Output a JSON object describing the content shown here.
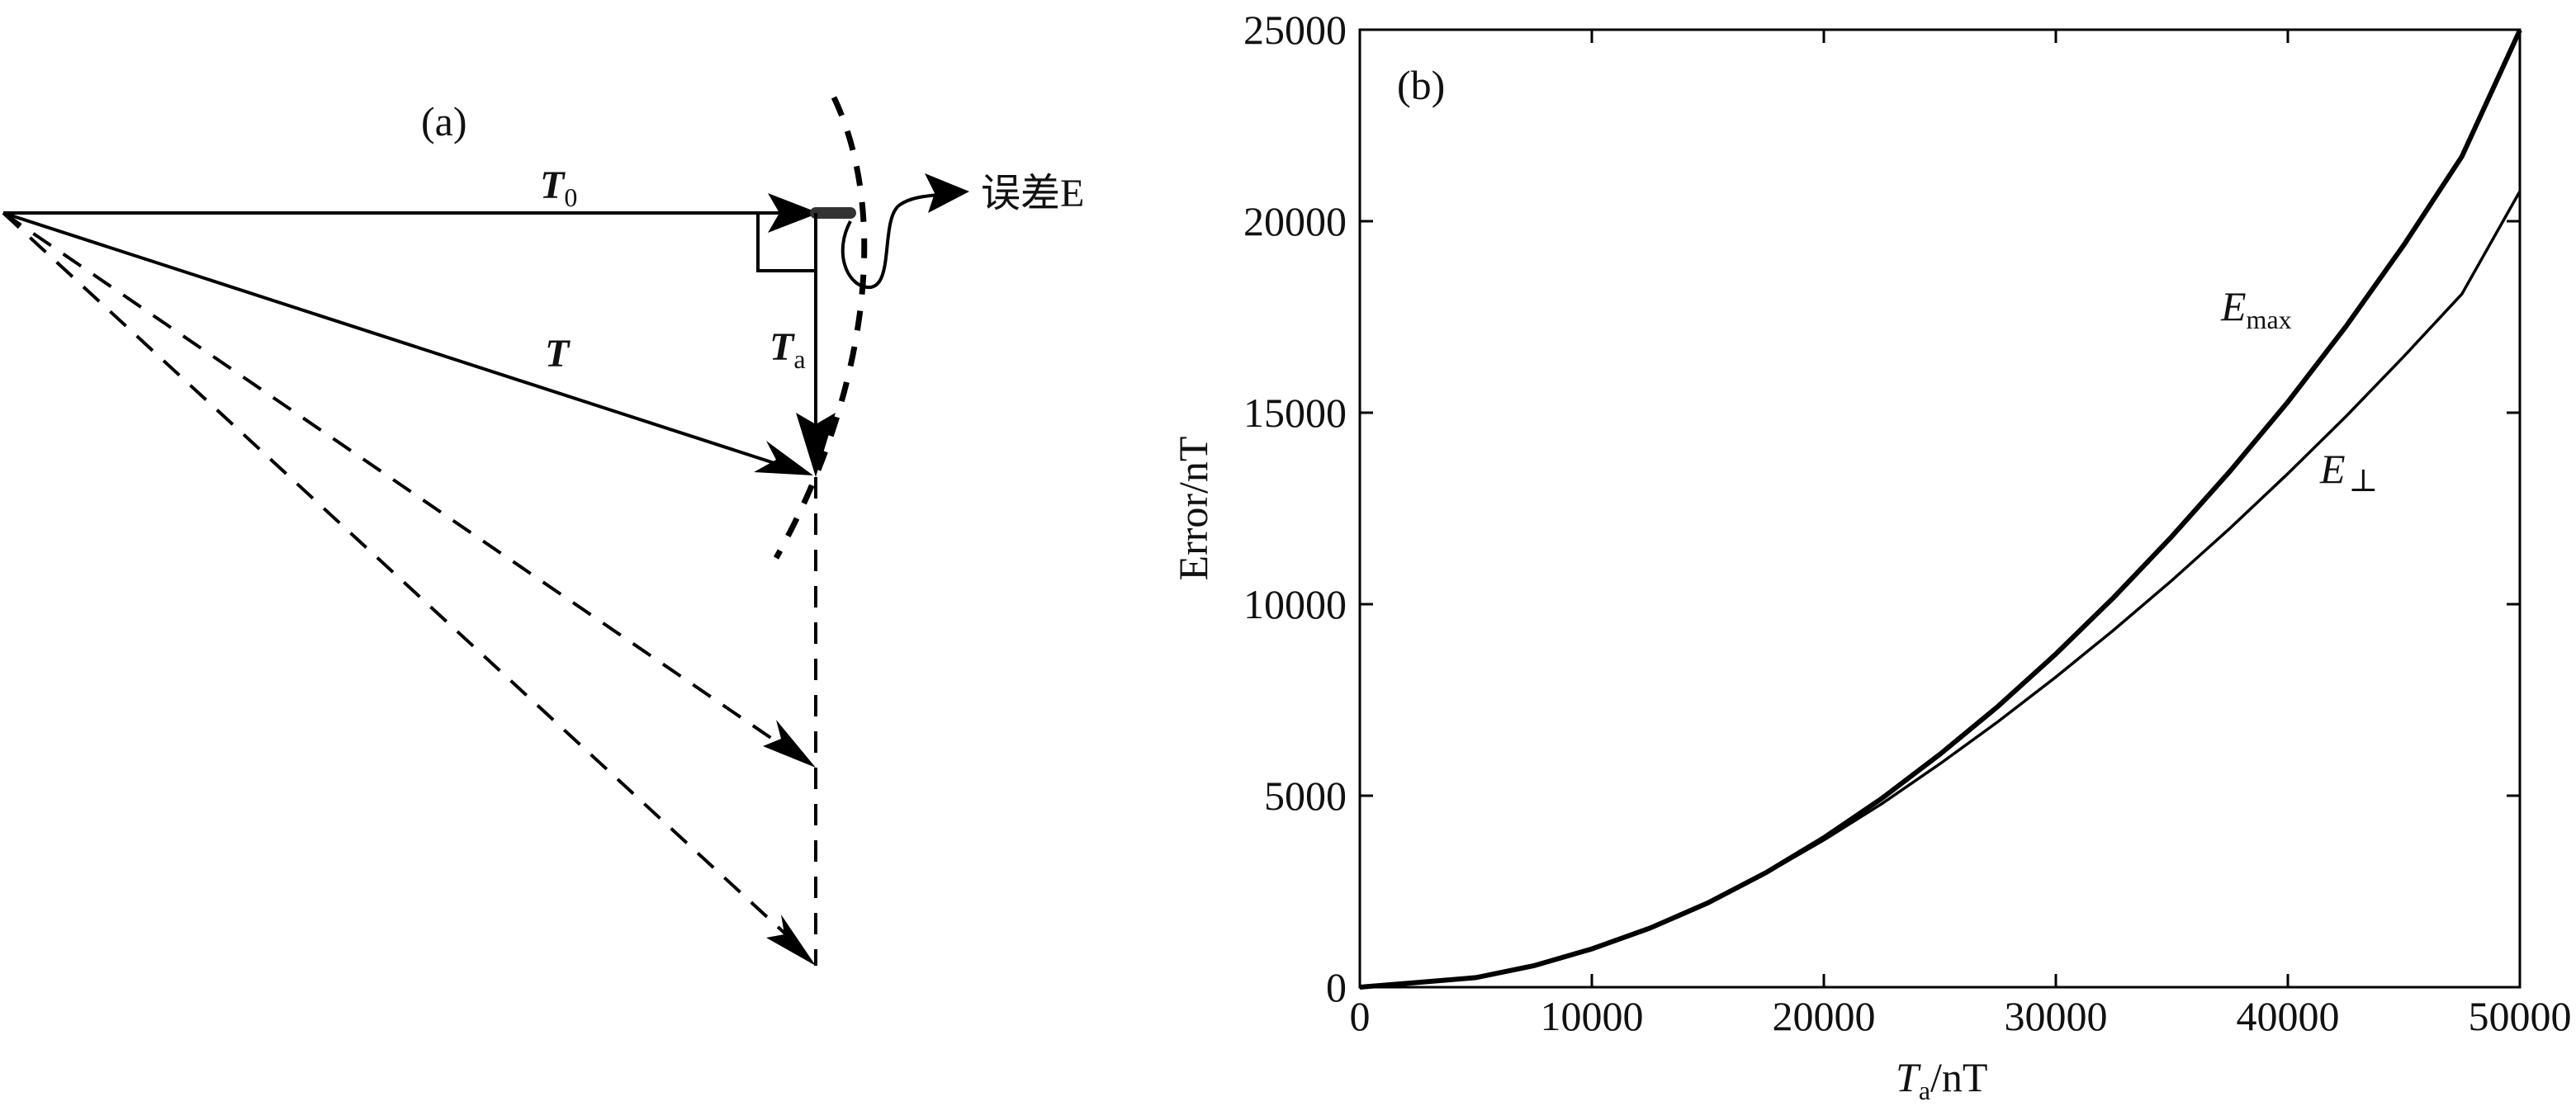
{
  "panel_a": {
    "label": "(a)",
    "vectors": {
      "T0": {
        "symbol": "T",
        "subscript": "0"
      },
      "T": {
        "symbol": "T"
      },
      "Ta": {
        "symbol": "T",
        "subscript": "a"
      }
    },
    "error_annotation": "误差E"
  },
  "chart_data": {
    "type": "line",
    "panel_label": "(b)",
    "x": [
      0,
      2500,
      5000,
      7500,
      10000,
      12500,
      15000,
      17500,
      20000,
      22500,
      25000,
      27500,
      30000,
      32500,
      35000,
      37500,
      40000,
      42500,
      45000,
      47500,
      50000
    ],
    "series": [
      {
        "name": "Emax",
        "name_main": "E",
        "name_sub": "max",
        "values": [
          0,
          125,
          250,
          560,
          1000,
          1540,
          2200,
          2990,
          3900,
          4930,
          6080,
          7330,
          8700,
          10180,
          11770,
          13470,
          15280,
          17250,
          19380,
          21690,
          24990
        ]
      },
      {
        "name": "E⊥",
        "name_main": "E",
        "name_sub": "⊥",
        "values": [
          0,
          125,
          250,
          560,
          1000,
          1540,
          2200,
          2970,
          3840,
          4790,
          5830,
          6930,
          8100,
          9330,
          10620,
          11980,
          13410,
          14900,
          16470,
          18100,
          20780
        ]
      }
    ],
    "xlabel_main": "T",
    "xlabel_sub": "a",
    "xlabel_unit": "/nT",
    "ylabel": "Error/nT",
    "xlim": [
      0,
      50000
    ],
    "ylim": [
      0,
      25000
    ],
    "xticks": [
      0,
      10000,
      20000,
      30000,
      40000,
      50000
    ],
    "yticks": [
      0,
      5000,
      10000,
      15000,
      20000,
      25000
    ],
    "grid": false
  }
}
